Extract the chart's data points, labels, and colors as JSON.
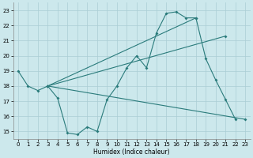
{
  "xlabel": "Humidex (Indice chaleur)",
  "xlim": [
    -0.5,
    23.5
  ],
  "ylim": [
    14.5,
    23.5
  ],
  "yticks": [
    15,
    16,
    17,
    18,
    19,
    20,
    21,
    22,
    23
  ],
  "xticks": [
    0,
    1,
    2,
    3,
    4,
    5,
    6,
    7,
    8,
    9,
    10,
    11,
    12,
    13,
    14,
    15,
    16,
    17,
    18,
    19,
    20,
    21,
    22,
    23
  ],
  "bg_color": "#cce8ec",
  "line_color": "#2a7b7b",
  "grid_color": "#aacdd4",
  "series": [
    {
      "x": [
        0,
        1,
        2,
        3,
        4,
        5,
        6,
        7,
        8,
        9,
        10,
        11,
        12,
        13,
        14,
        15,
        16,
        17,
        18,
        19,
        20,
        21,
        22
      ],
      "y": [
        19,
        18,
        17.7,
        18,
        17.2,
        14.9,
        14.8,
        15.3,
        15.0,
        17.1,
        18.0,
        19.2,
        20.0,
        19.2,
        21.5,
        22.8,
        22.9,
        22.5,
        22.5,
        19.8,
        18.4,
        17.1,
        15.8
      ]
    },
    {
      "x": [
        3,
        23
      ],
      "y": [
        18,
        15.8
      ]
    },
    {
      "x": [
        3,
        18
      ],
      "y": [
        18,
        22.5
      ]
    },
    {
      "x": [
        3,
        21
      ],
      "y": [
        18,
        21.3
      ]
    }
  ]
}
